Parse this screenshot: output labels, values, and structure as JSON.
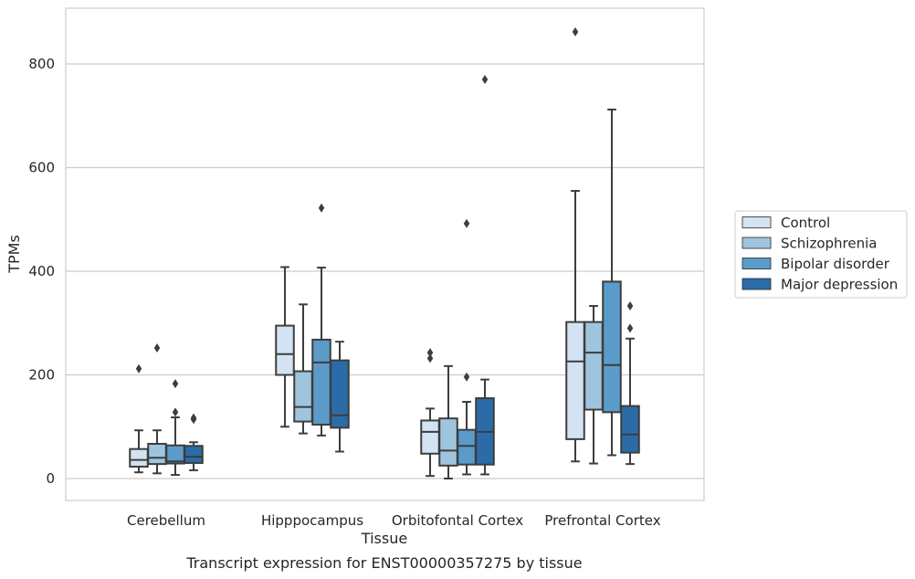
{
  "chart_data": {
    "type": "box",
    "title": "",
    "xlabel": "Tissue",
    "ylabel": "TPMs",
    "caption": "Transcript expression for ENST00000357275 by tissue",
    "categories": [
      "Cerebellum",
      "Hipppocampus",
      "Orbitofontal Cortex",
      "Prefrontal Cortex"
    ],
    "ylim": [
      -42,
      908
    ],
    "yticks": [
      0,
      200,
      400,
      600,
      800
    ],
    "grid": "horizontal",
    "legend_position": "right",
    "series": [
      {
        "name": "Control",
        "color": "#d4e3f3",
        "boxes": [
          {
            "whislo": 12,
            "q1": 23,
            "med": 36,
            "q3": 57,
            "whishi": 93,
            "fliers": [
              212
            ]
          },
          {
            "whislo": 100,
            "q1": 200,
            "med": 240,
            "q3": 295,
            "whishi": 408,
            "fliers": []
          },
          {
            "whislo": 5,
            "q1": 48,
            "med": 90,
            "q3": 112,
            "whishi": 135,
            "fliers": [
              232,
              243
            ]
          },
          {
            "whislo": 33,
            "q1": 76,
            "med": 226,
            "q3": 302,
            "whishi": 555,
            "fliers": [
              862
            ]
          }
        ]
      },
      {
        "name": "Schizophrenia",
        "color": "#9fc5de",
        "boxes": [
          {
            "whislo": 10,
            "q1": 28,
            "med": 40,
            "q3": 67,
            "whishi": 93,
            "fliers": [
              252
            ]
          },
          {
            "whislo": 87,
            "q1": 110,
            "med": 138,
            "q3": 207,
            "whishi": 336,
            "fliers": []
          },
          {
            "whislo": 0,
            "q1": 25,
            "med": 54,
            "q3": 116,
            "whishi": 217,
            "fliers": []
          },
          {
            "whislo": 29,
            "q1": 133,
            "med": 243,
            "q3": 302,
            "whishi": 333,
            "fliers": []
          }
        ]
      },
      {
        "name": "Bipolar disorder",
        "color": "#5b9bca",
        "boxes": [
          {
            "whislo": 7,
            "q1": 29,
            "med": 33,
            "q3": 64,
            "whishi": 118,
            "fliers": [
              128,
              183
            ]
          },
          {
            "whislo": 83,
            "q1": 104,
            "med": 224,
            "q3": 268,
            "whishi": 407,
            "fliers": [
              522
            ]
          },
          {
            "whislo": 8,
            "q1": 27,
            "med": 63,
            "q3": 94,
            "whishi": 148,
            "fliers": [
              196,
              492
            ]
          },
          {
            "whislo": 45,
            "q1": 128,
            "med": 219,
            "q3": 380,
            "whishi": 712,
            "fliers": []
          }
        ]
      },
      {
        "name": "Major depression",
        "color": "#2b6ca8",
        "boxes": [
          {
            "whislo": 16,
            "q1": 30,
            "med": 42,
            "q3": 63,
            "whishi": 70,
            "fliers": [
              114,
              117
            ]
          },
          {
            "whislo": 52,
            "q1": 98,
            "med": 122,
            "q3": 228,
            "whishi": 264,
            "fliers": []
          },
          {
            "whislo": 8,
            "q1": 27,
            "med": 90,
            "q3": 155,
            "whishi": 191,
            "fliers": [
              770
            ]
          },
          {
            "whislo": 28,
            "q1": 50,
            "med": 85,
            "q3": 140,
            "whishi": 270,
            "fliers": [
              290,
              333
            ]
          }
        ]
      }
    ]
  }
}
